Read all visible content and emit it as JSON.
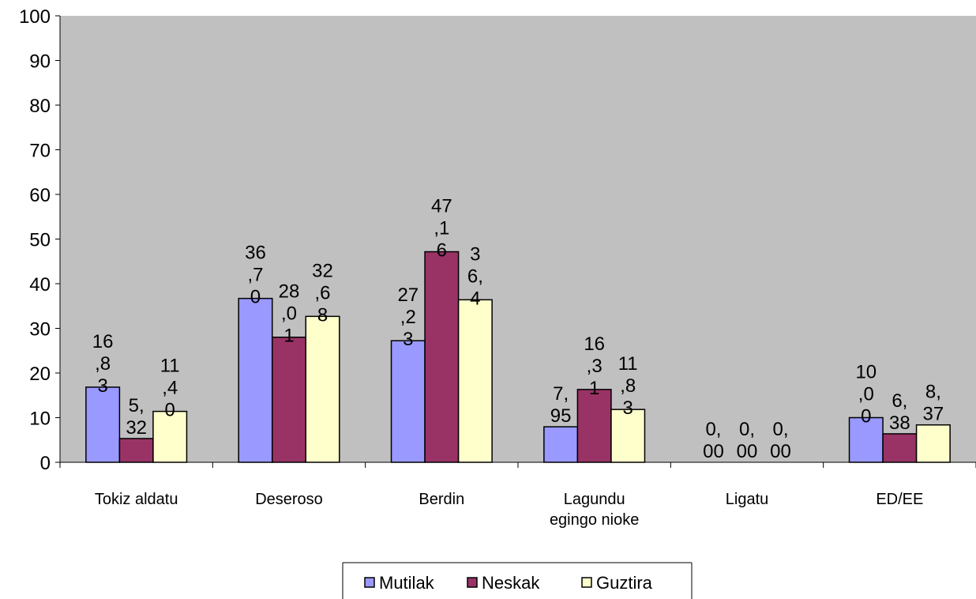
{
  "chart_data": {
    "type": "bar",
    "title": "",
    "xlabel": "",
    "ylabel": "",
    "ylim": [
      0,
      100
    ],
    "yticks": [
      "0",
      "10",
      "20",
      "30",
      "40",
      "50",
      "60",
      "70",
      "80",
      "90",
      "100"
    ],
    "grid": false,
    "legend_position": "bottom",
    "categories": [
      [
        "Tokiz aldatu"
      ],
      [
        "Deseroso"
      ],
      [
        "Berdin"
      ],
      [
        "Lagundu",
        "egingo nioke"
      ],
      [
        "Ligatu"
      ],
      [
        "ED/EE"
      ]
    ],
    "series": [
      {
        "name": "Mutilak",
        "color": "#9999ff",
        "values": [
          16.83,
          36.7,
          27.23,
          7.95,
          0.0,
          10.0
        ],
        "labels": [
          [
            "16",
            ",8",
            "3"
          ],
          [
            "36",
            ",7",
            "0"
          ],
          [
            "27",
            ",2",
            "3"
          ],
          [
            "7,",
            "95"
          ],
          [
            "0,",
            "00"
          ],
          [
            "10",
            ",0",
            "0"
          ]
        ]
      },
      {
        "name": "Neskak",
        "color": "#993366",
        "values": [
          5.32,
          28.01,
          47.16,
          16.31,
          0.0,
          6.38
        ],
        "labels": [
          [
            "5,",
            "32"
          ],
          [
            "28",
            ",0",
            "1"
          ],
          [
            "47",
            ",1",
            "6"
          ],
          [
            "16",
            ",3",
            "1"
          ],
          [
            "0,",
            "00"
          ],
          [
            "6,",
            "38"
          ]
        ]
      },
      {
        "name": "Guztira",
        "color": "#ffffcc",
        "values": [
          11.4,
          32.68,
          36.4,
          11.83,
          0.0,
          8.37
        ],
        "labels": [
          [
            "11",
            ",4",
            "0"
          ],
          [
            "32",
            ",6",
            "8"
          ],
          [
            "3",
            "6,",
            "4"
          ],
          [
            "11",
            ",8",
            "3"
          ],
          [
            "0,",
            "00"
          ],
          [
            "8,",
            "37"
          ]
        ]
      }
    ],
    "plot_background": "#c0c0c0"
  }
}
